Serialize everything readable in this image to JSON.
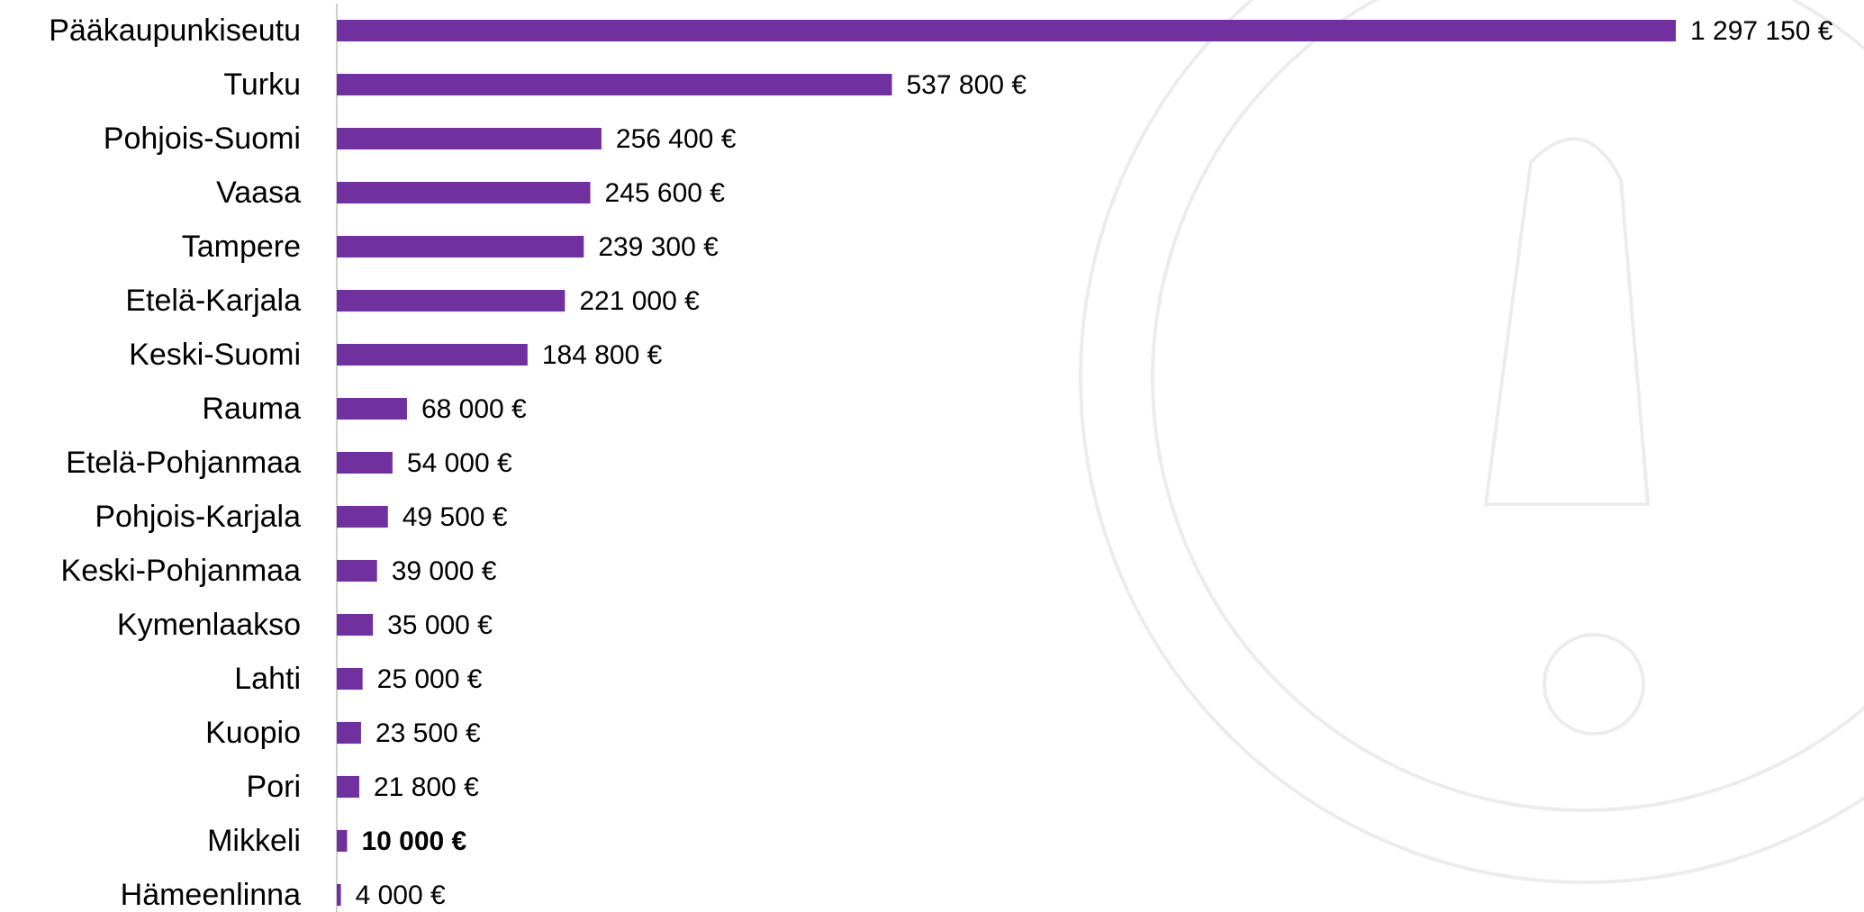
{
  "chart_data": {
    "type": "bar",
    "orientation": "horizontal",
    "color": "#7030a0",
    "categories": [
      "Pääkaupunkiseutu",
      "Turku",
      "Pohjois-Suomi",
      "Vaasa",
      "Tampere",
      "Etelä-Karjala",
      "Keski-Suomi",
      "Rauma",
      "Etelä-Pohjanmaa",
      "Pohjois-Karjala",
      "Keski-Pohjanmaa",
      "Kymenlaakso",
      "Lahti",
      "Kuopio",
      "Pori",
      "Mikkeli",
      "Hämeenlinna"
    ],
    "values": [
      1297150,
      537800,
      256400,
      245600,
      239300,
      221000,
      184800,
      68000,
      54000,
      49500,
      39000,
      35000,
      25000,
      23500,
      21800,
      10000,
      4000
    ],
    "value_labels": [
      "1 297 150 €",
      "537 800 €",
      "256 400 €",
      "245 600 €",
      "239 300 €",
      "221 000 €",
      "184 800 €",
      "68 000 €",
      "54 000 €",
      "49 500 €",
      "39 000 €",
      "35 000 €",
      "25 000 €",
      "23 500 €",
      "21 800 €",
      "10 000 €",
      "4 000 €"
    ]
  }
}
